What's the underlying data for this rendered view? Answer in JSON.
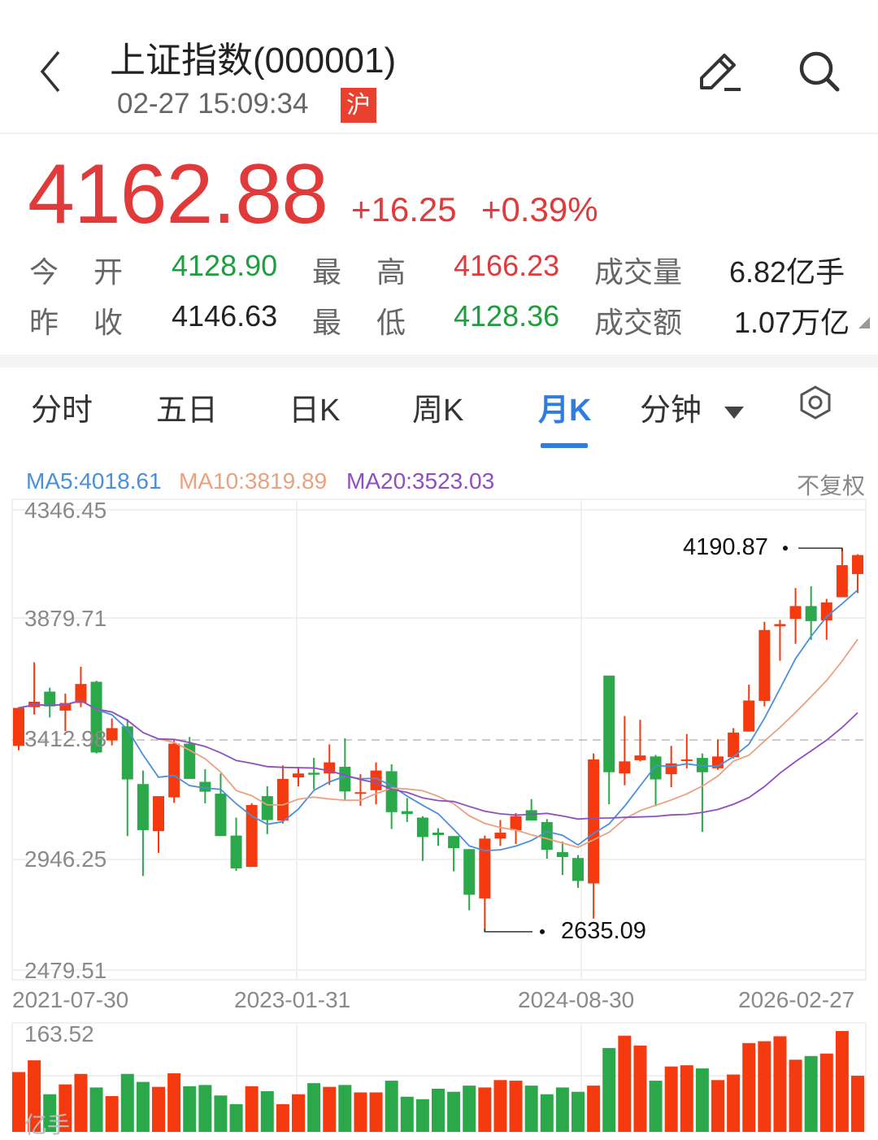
{
  "header": {
    "title": "上证指数(000001)",
    "time": "02-27 15:09:34",
    "market_badge": "沪",
    "icons": [
      "back-chevron-icon",
      "edit-icon",
      "search-icon"
    ]
  },
  "quote": {
    "price": "4162.88",
    "change": "+16.25",
    "change_pct": "+0.39%",
    "rows": [
      {
        "l1a": "今",
        "l1b": "开",
        "v1": "4128.90",
        "l2a": "最",
        "l2b": "高",
        "v2": "4166.23",
        "l3": "成交量",
        "v3": "6.82亿手"
      },
      {
        "l1a": "昨",
        "l1b": "收",
        "v1": "4146.63",
        "l2a": "最",
        "l2b": "低",
        "v2": "4128.36",
        "l3": "成交额",
        "v3": "1.07万亿"
      }
    ]
  },
  "tabs": [
    {
      "label": "分时"
    },
    {
      "label": "五日"
    },
    {
      "label": "日K"
    },
    {
      "label": "周K"
    },
    {
      "label": "月K",
      "active": true
    },
    {
      "label": "分钟"
    }
  ],
  "ma_legend": {
    "ma5": "MA5:4018.61",
    "ma10": "MA10:3819.89",
    "ma20": "MA20:3523.03",
    "adjust": "不复权"
  },
  "colors": {
    "up": "#f63a10",
    "down": "#2aa84a",
    "ma5": "#4a8fdc",
    "ma10": "#eaa17f",
    "ma20": "#8e4fc0",
    "accent": "#2f7de1"
  },
  "price_axis": [
    "4346.45",
    "3879.71",
    "3412.98",
    "2946.25",
    "2479.51"
  ],
  "date_axis": [
    "2021-07-30",
    "2023-01-31",
    "2024-08-30",
    "2026-02-27"
  ],
  "annotations": {
    "high": "4190.87",
    "low": "2635.09"
  },
  "volume_axis": {
    "max": "163.52",
    "unit": "亿手"
  },
  "kline": {
    "type": "candlestick",
    "period": "monthly",
    "ohlc_fields": [
      "open",
      "close",
      "high",
      "low"
    ],
    "candles": [
      [
        3389,
        3543,
        3546,
        3371
      ],
      [
        3546,
        3568,
        3728,
        3516
      ],
      [
        3609,
        3549,
        3625,
        3504
      ],
      [
        3532,
        3563,
        3601,
        3449
      ],
      [
        3563,
        3640,
        3710,
        3546
      ],
      [
        3649,
        3362,
        3653,
        3358
      ],
      [
        3411,
        3461,
        3500,
        3391
      ],
      [
        3468,
        3253,
        3498,
        3023
      ],
      [
        3234,
        3047,
        3289,
        2861
      ],
      [
        3043,
        3185,
        3185,
        2955
      ],
      [
        3180,
        3398,
        3415,
        3158
      ],
      [
        3398,
        3255,
        3425,
        3255
      ],
      [
        3243,
        3203,
        3294,
        3156
      ],
      [
        3195,
        3023,
        3277,
        3023
      ],
      [
        3025,
        2892,
        3098,
        2882
      ],
      [
        2898,
        3149,
        3156,
        2898
      ],
      [
        3185,
        3088,
        3225,
        3031
      ],
      [
        3086,
        3255,
        3310,
        3074
      ],
      [
        3261,
        3277,
        3304,
        3225
      ],
      [
        3280,
        3272,
        3340,
        3213
      ],
      [
        3277,
        3322,
        3395,
        3231
      ],
      [
        3304,
        3204,
        3419,
        3168
      ],
      [
        3195,
        3201,
        3274,
        3146
      ],
      [
        3209,
        3289,
        3322,
        3152
      ],
      [
        3286,
        3120,
        3314,
        3052
      ],
      [
        3124,
        3112,
        3177,
        3080
      ],
      [
        3098,
        3019,
        3104,
        2922
      ],
      [
        3037,
        3027,
        3055,
        2983
      ],
      [
        3023,
        2974,
        3023,
        2880
      ],
      [
        2970,
        2785,
        2970,
        2722
      ],
      [
        2770,
        3013,
        3025,
        2635.09
      ],
      [
        3013,
        3037,
        3088,
        2983
      ],
      [
        3047,
        3104,
        3116,
        2991
      ],
      [
        3128,
        3086,
        3173,
        3086
      ],
      [
        3080,
        2967,
        3092,
        2931
      ],
      [
        2958,
        2938,
        3001,
        2865
      ],
      [
        2934,
        2841,
        2946,
        2813
      ],
      [
        2831,
        3334,
        3358,
        2688
      ],
      [
        3674,
        3282,
        3674,
        3152
      ],
      [
        3277,
        3326,
        3510,
        3229
      ],
      [
        3331,
        3350,
        3495,
        3326
      ],
      [
        3346,
        3253,
        3352,
        3144
      ],
      [
        3274,
        3318,
        3389,
        3221
      ],
      [
        3328,
        3334,
        3437,
        3298
      ],
      [
        3340,
        3282,
        3358,
        3040
      ],
      [
        3298,
        3346,
        3415,
        3292
      ],
      [
        3343,
        3443,
        3461,
        3338
      ],
      [
        3447,
        3573,
        3637,
        3447
      ],
      [
        3571,
        3859,
        3892,
        3549
      ],
      [
        3874,
        3883,
        3900,
        3734
      ],
      [
        3904,
        3956,
        4029,
        3803
      ],
      [
        3956,
        3895,
        4037,
        3819
      ],
      [
        3898,
        3971,
        3985,
        3819
      ],
      [
        3992,
        4122,
        4190.87,
        3992
      ],
      [
        4086,
        4162.88,
        4166.23,
        4009
      ]
    ],
    "volume": [
      97,
      116,
      61,
      77,
      94,
      72,
      58,
      94,
      81,
      73,
      95,
      74,
      76,
      59,
      45,
      74,
      66,
      45,
      61,
      79,
      73,
      76,
      64,
      64,
      83,
      57,
      53,
      70,
      65,
      75,
      72,
      84,
      83,
      75,
      61,
      72,
      65,
      75,
      136,
      156,
      140,
      83,
      106,
      108,
      103,
      84,
      93,
      144,
      147,
      155,
      117,
      123,
      127,
      163.5,
      91
    ],
    "price_range": [
      2479.51,
      4346.45
    ],
    "volume_range": [
      0,
      163.52
    ],
    "reference_line": 3412.98
  }
}
